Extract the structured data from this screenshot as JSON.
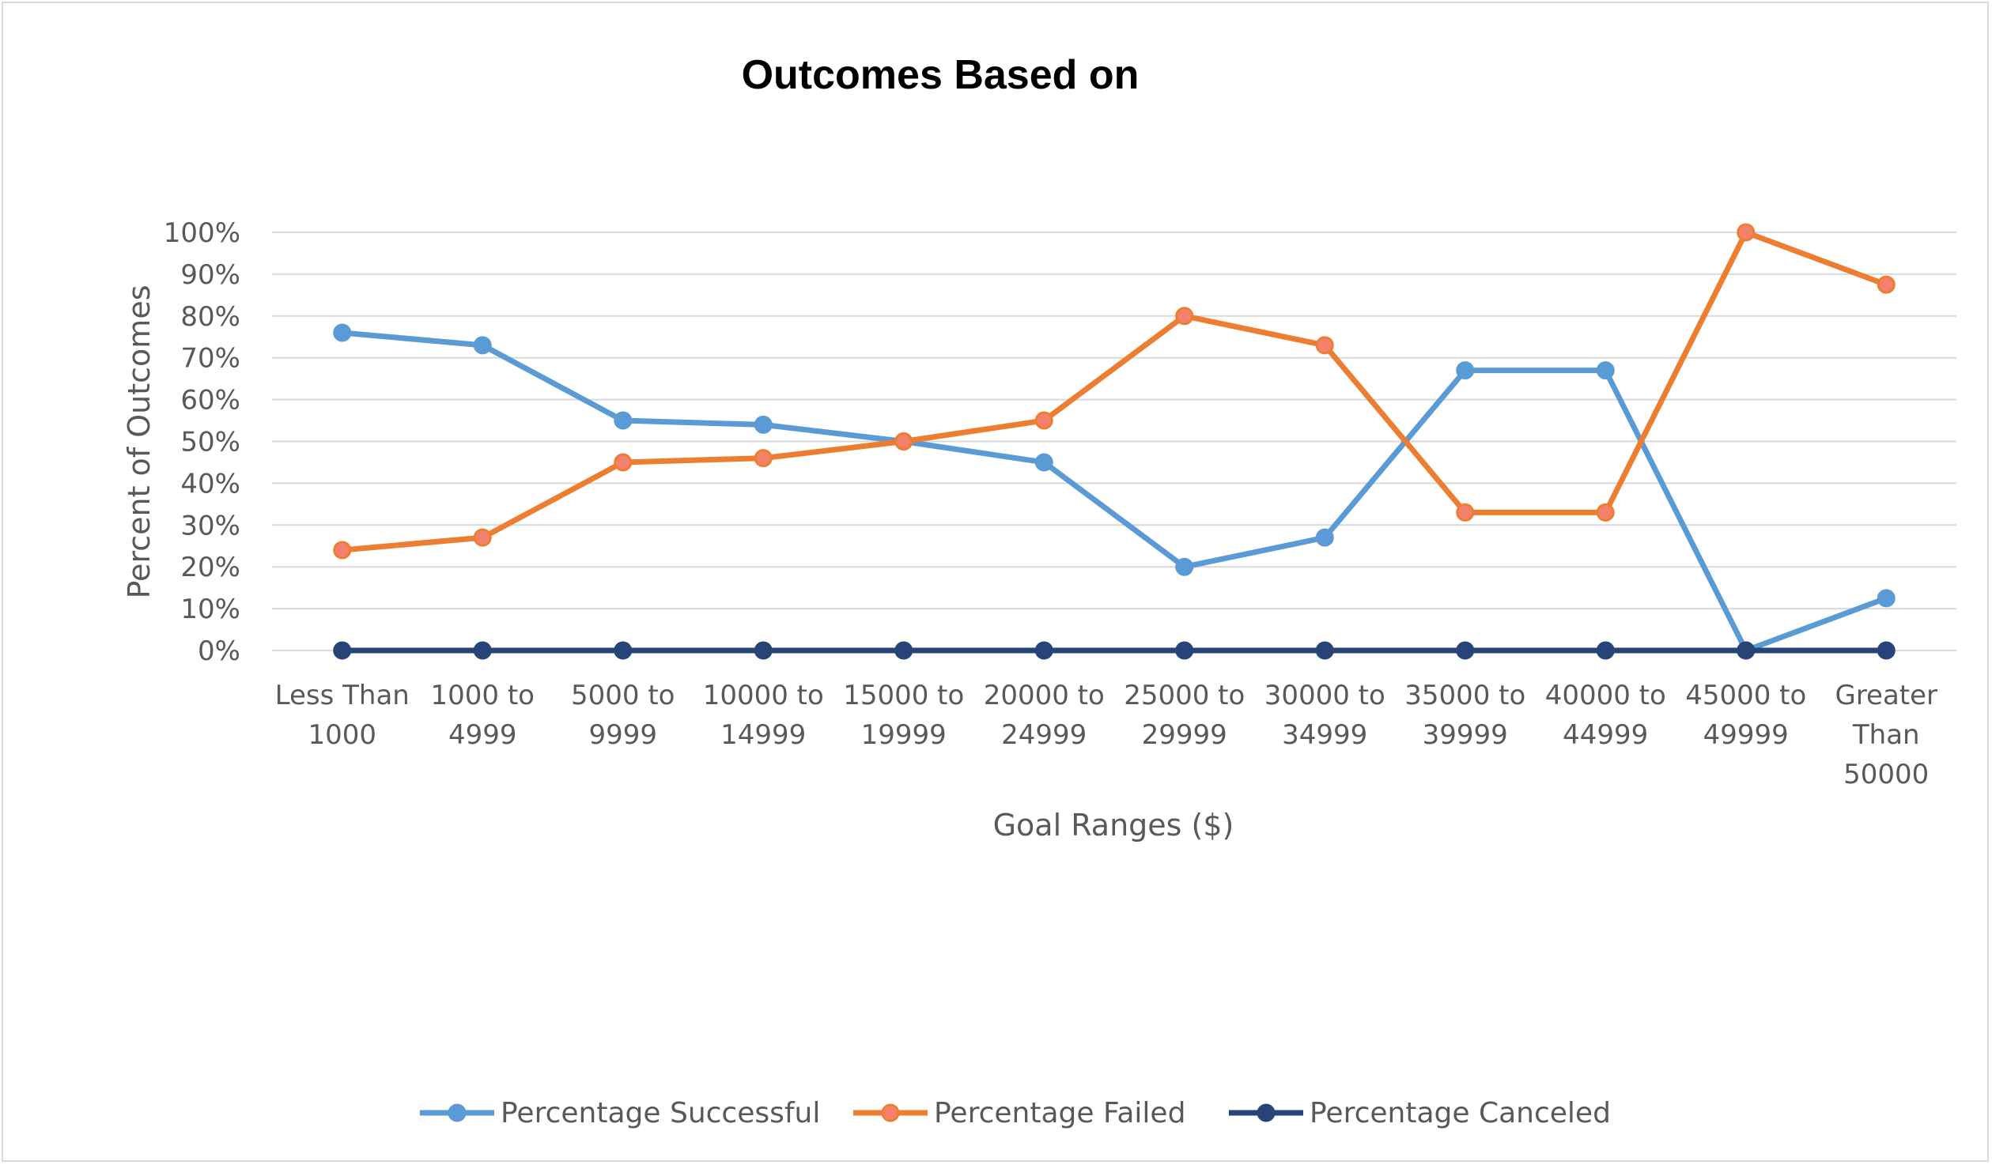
{
  "chart_data": {
    "type": "line",
    "title": "Outcomes Based on",
    "xlabel": "Goal Ranges ($)",
    "ylabel": "Percent of Outcomes",
    "ylim": [
      0,
      100
    ],
    "y_ticks": [
      "0%",
      "10%",
      "20%",
      "30%",
      "40%",
      "50%",
      "60%",
      "70%",
      "80%",
      "90%",
      "100%"
    ],
    "categories": [
      [
        "Less Than",
        "1000"
      ],
      [
        "1000 to",
        "4999"
      ],
      [
        "5000 to",
        "9999"
      ],
      [
        "10000 to",
        "14999"
      ],
      [
        "15000 to",
        "19999"
      ],
      [
        "20000 to",
        "24999"
      ],
      [
        "25000 to",
        "29999"
      ],
      [
        "30000 to",
        "34999"
      ],
      [
        "35000 to",
        "39999"
      ],
      [
        "40000 to",
        "44999"
      ],
      [
        "45000 to",
        "49999"
      ],
      [
        "Greater",
        "Than",
        "50000"
      ]
    ],
    "grid": true,
    "legend_position": "bottom",
    "series": [
      {
        "name": "Percentage Successful",
        "color": "#5B9BD5",
        "marker_fill": "#5B9BD5",
        "values": [
          76,
          73,
          55,
          54,
          50,
          45,
          20,
          27,
          67,
          67,
          0,
          12.5
        ]
      },
      {
        "name": "Percentage Failed",
        "color": "#ED7D31",
        "marker_fill": "#F4816C",
        "values": [
          24,
          27,
          45,
          46,
          50,
          55,
          80,
          73,
          33,
          33,
          100,
          87.5
        ]
      },
      {
        "name": "Percentage Canceled",
        "color": "#264478",
        "marker_fill": "#264478",
        "values": [
          0,
          0,
          0,
          0,
          0,
          0,
          0,
          0,
          0,
          0,
          0,
          0
        ]
      }
    ]
  }
}
